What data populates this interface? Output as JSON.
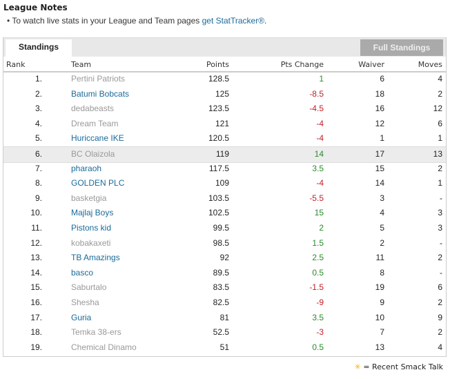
{
  "title": "League Notes",
  "note": {
    "text": "To watch live stats in your League and Team pages ",
    "link": "get StatTracker®",
    "end": "."
  },
  "tabs": {
    "standings": "Standings",
    "full": "Full Standings"
  },
  "columns": {
    "rank": "Rank",
    "team": "Team",
    "points": "Points",
    "change": "Pts Change",
    "waiver": "Waiver",
    "moves": "Moves"
  },
  "rows": [
    {
      "rank": "1.",
      "team": "Pertini Patriots",
      "link": false,
      "points": "128.5",
      "change": "1",
      "waiver": "6",
      "moves": "4"
    },
    {
      "rank": "2.",
      "team": "Batumi Bobcats",
      "link": true,
      "points": "125",
      "change": "-8.5",
      "waiver": "18",
      "moves": "2"
    },
    {
      "rank": "3.",
      "team": "dedabeasts",
      "link": false,
      "points": "123.5",
      "change": "-4.5",
      "waiver": "16",
      "moves": "12"
    },
    {
      "rank": "4.",
      "team": "Dream Team",
      "link": false,
      "points": "121",
      "change": "-4",
      "waiver": "12",
      "moves": "6"
    },
    {
      "rank": "5.",
      "team": "Huriccane IKE",
      "link": true,
      "points": "120.5",
      "change": "-4",
      "waiver": "1",
      "moves": "1"
    },
    {
      "rank": "6.",
      "team": "BC Olaizola",
      "link": false,
      "points": "119",
      "change": "14",
      "waiver": "17",
      "moves": "13",
      "highlight": true
    },
    {
      "rank": "7.",
      "team": "pharaoh",
      "link": true,
      "points": "117.5",
      "change": "3.5",
      "waiver": "15",
      "moves": "2"
    },
    {
      "rank": "8.",
      "team": "GOLDEN PLC",
      "link": true,
      "points": "109",
      "change": "-4",
      "waiver": "14",
      "moves": "1"
    },
    {
      "rank": "9.",
      "team": "basketgia",
      "link": false,
      "points": "103.5",
      "change": "-5.5",
      "waiver": "3",
      "moves": "-"
    },
    {
      "rank": "10.",
      "team": "Majlaj Boys",
      "link": true,
      "points": "102.5",
      "change": "15",
      "waiver": "4",
      "moves": "3"
    },
    {
      "rank": "11.",
      "team": "Pistons kid",
      "link": true,
      "points": "99.5",
      "change": "2",
      "waiver": "5",
      "moves": "3"
    },
    {
      "rank": "12.",
      "team": "kobakaxeti",
      "link": false,
      "points": "98.5",
      "change": "1.5",
      "waiver": "2",
      "moves": "-"
    },
    {
      "rank": "13.",
      "team": "TB Amazings",
      "link": true,
      "points": "92",
      "change": "2.5",
      "waiver": "11",
      "moves": "2"
    },
    {
      "rank": "14.",
      "team": "basco",
      "link": true,
      "points": "89.5",
      "change": "0.5",
      "waiver": "8",
      "moves": "-"
    },
    {
      "rank": "15.",
      "team": "Saburtalo",
      "link": false,
      "points": "83.5",
      "change": "-1.5",
      "waiver": "19",
      "moves": "6"
    },
    {
      "rank": "16.",
      "team": "Shesha",
      "link": false,
      "points": "82.5",
      "change": "-9",
      "waiver": "9",
      "moves": "2"
    },
    {
      "rank": "17.",
      "team": "Guria",
      "link": true,
      "points": "81",
      "change": "3.5",
      "waiver": "10",
      "moves": "9"
    },
    {
      "rank": "18.",
      "team": "Temka 38-ers",
      "link": false,
      "points": "52.5",
      "change": "-3",
      "waiver": "7",
      "moves": "2"
    },
    {
      "rank": "19.",
      "team": "Chemical Dinamo",
      "link": false,
      "points": "51",
      "change": "0.5",
      "waiver": "13",
      "moves": "4"
    }
  ],
  "legend": {
    "icon": "smack-talk-star-icon",
    "text": "= Recent Smack Talk"
  },
  "colors": {
    "link": "#1a6a9a",
    "positive": "#2a8a2a",
    "negative": "#c0202a"
  }
}
